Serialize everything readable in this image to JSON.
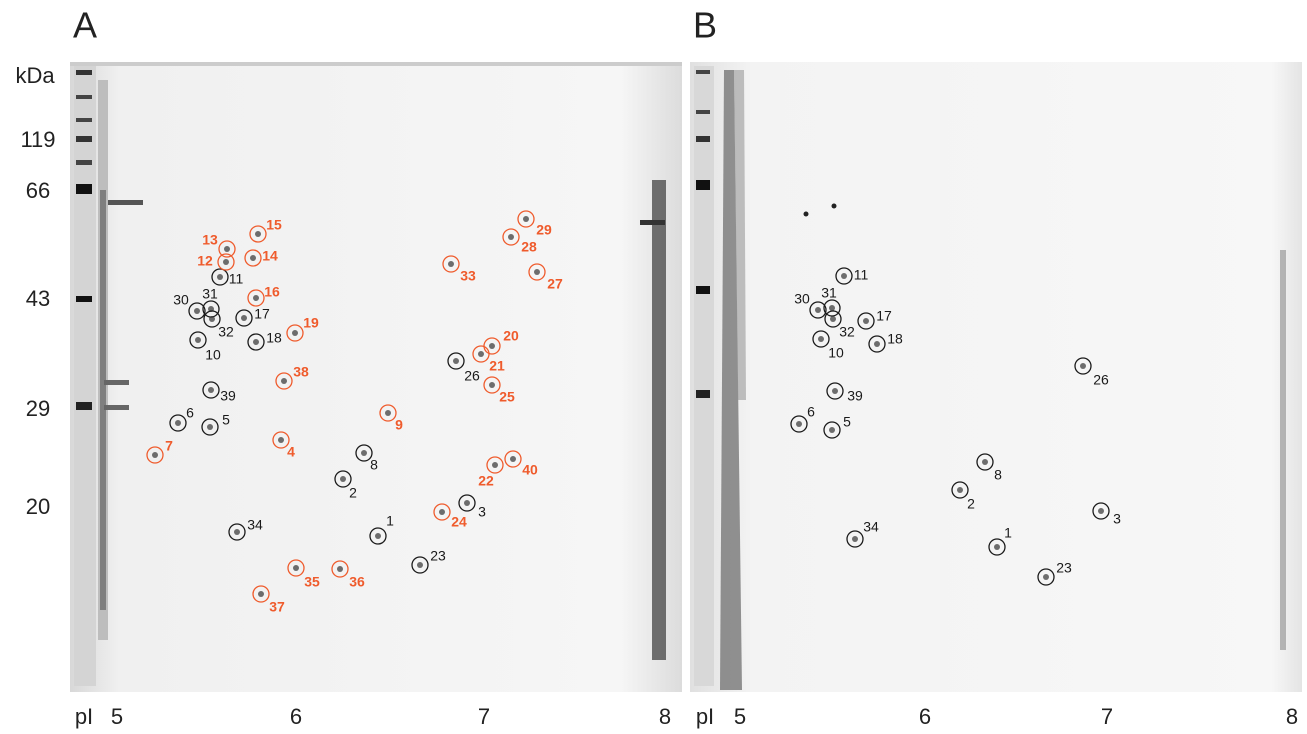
{
  "panels": [
    {
      "label": "A",
      "mw_title": "kDa",
      "mw_markers": [
        "119",
        "66",
        "43",
        "29",
        "20"
      ],
      "pi_title": "pI",
      "pi_markers": [
        "5",
        "6",
        "7",
        "8"
      ],
      "spots": [
        {
          "label": "1",
          "color": "#1a1a1a"
        },
        {
          "label": "2",
          "color": "#1a1a1a"
        },
        {
          "label": "3",
          "color": "#1a1a1a"
        },
        {
          "label": "4",
          "color": "#ef5b2c"
        },
        {
          "label": "5",
          "color": "#1a1a1a"
        },
        {
          "label": "6",
          "color": "#1a1a1a"
        },
        {
          "label": "7",
          "color": "#ef5b2c"
        },
        {
          "label": "8",
          "color": "#1a1a1a"
        },
        {
          "label": "9",
          "color": "#ef5b2c"
        },
        {
          "label": "10",
          "color": "#1a1a1a"
        },
        {
          "label": "11",
          "color": "#1a1a1a"
        },
        {
          "label": "12",
          "color": "#ef5b2c"
        },
        {
          "label": "13",
          "color": "#ef5b2c"
        },
        {
          "label": "14",
          "color": "#ef5b2c"
        },
        {
          "label": "15",
          "color": "#ef5b2c"
        },
        {
          "label": "16",
          "color": "#ef5b2c"
        },
        {
          "label": "17",
          "color": "#1a1a1a"
        },
        {
          "label": "18",
          "color": "#1a1a1a"
        },
        {
          "label": "19",
          "color": "#ef5b2c"
        },
        {
          "label": "20",
          "color": "#ef5b2c"
        },
        {
          "label": "21",
          "color": "#ef5b2c"
        },
        {
          "label": "22",
          "color": "#ef5b2c"
        },
        {
          "label": "23",
          "color": "#1a1a1a"
        },
        {
          "label": "24",
          "color": "#ef5b2c"
        },
        {
          "label": "25",
          "color": "#ef5b2c"
        },
        {
          "label": "26",
          "color": "#1a1a1a"
        },
        {
          "label": "27",
          "color": "#ef5b2c"
        },
        {
          "label": "28",
          "color": "#ef5b2c"
        },
        {
          "label": "29",
          "color": "#ef5b2c"
        },
        {
          "label": "30",
          "color": "#1a1a1a"
        },
        {
          "label": "31",
          "color": "#1a1a1a"
        },
        {
          "label": "32",
          "color": "#1a1a1a"
        },
        {
          "label": "33",
          "color": "#ef5b2c"
        },
        {
          "label": "34",
          "color": "#1a1a1a"
        },
        {
          "label": "35",
          "color": "#ef5b2c"
        },
        {
          "label": "36",
          "color": "#ef5b2c"
        },
        {
          "label": "37",
          "color": "#ef5b2c"
        },
        {
          "label": "38",
          "color": "#ef5b2c"
        },
        {
          "label": "39",
          "color": "#1a1a1a"
        },
        {
          "label": "40",
          "color": "#ef5b2c"
        }
      ]
    },
    {
      "label": "B",
      "pi_title": "pI",
      "pi_markers": [
        "5",
        "6",
        "7",
        "8"
      ],
      "spots": [
        {
          "label": "11",
          "color": "#1a1a1a"
        },
        {
          "label": "30",
          "color": "#1a1a1a"
        },
        {
          "label": "31",
          "color": "#1a1a1a"
        },
        {
          "label": "32",
          "color": "#1a1a1a"
        },
        {
          "label": "17",
          "color": "#1a1a1a"
        },
        {
          "label": "10",
          "color": "#1a1a1a"
        },
        {
          "label": "18",
          "color": "#1a1a1a"
        },
        {
          "label": "26",
          "color": "#1a1a1a"
        },
        {
          "label": "39",
          "color": "#1a1a1a"
        },
        {
          "label": "6",
          "color": "#1a1a1a"
        },
        {
          "label": "5",
          "color": "#1a1a1a"
        },
        {
          "label": "8",
          "color": "#1a1a1a"
        },
        {
          "label": "2",
          "color": "#1a1a1a"
        },
        {
          "label": "3",
          "color": "#1a1a1a"
        },
        {
          "label": "34",
          "color": "#1a1a1a"
        },
        {
          "label": "1",
          "color": "#1a1a1a"
        },
        {
          "label": "23",
          "color": "#1a1a1a"
        }
      ]
    }
  ]
}
